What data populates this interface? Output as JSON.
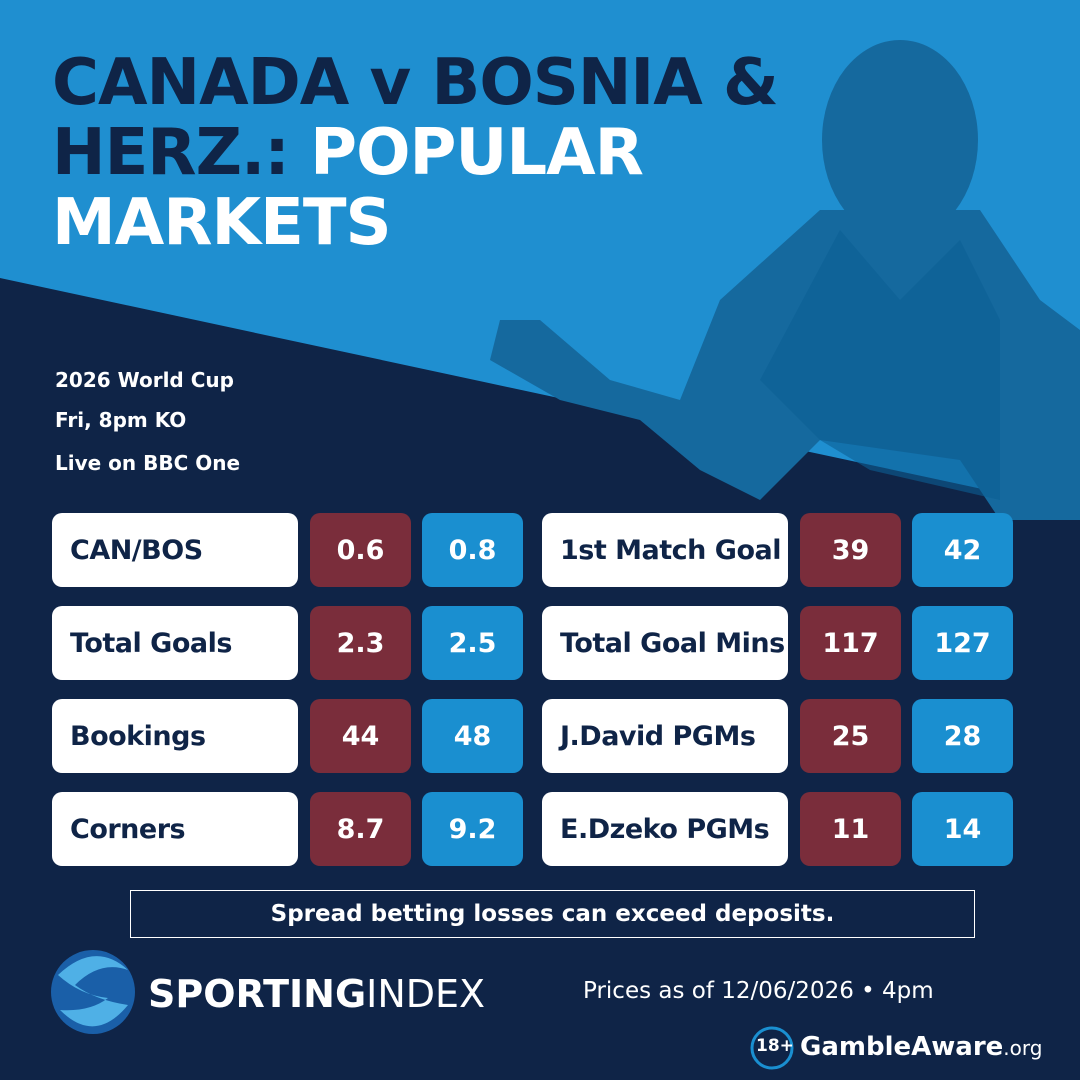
{
  "header": {
    "title_line1": "CANADA v BOSNIA &",
    "title_line2_dark": "HERZ.:",
    "title_line2_light": "POPULAR",
    "title_line3": "MARKETS"
  },
  "info": [
    "2026 World Cup",
    "Fri, 8pm KO",
    "Live on BBC One"
  ],
  "markets": {
    "left": [
      {
        "label": "CAN/BOS",
        "sell": "0.6",
        "buy": "0.8"
      },
      {
        "label": "Total Goals",
        "sell": "2.3",
        "buy": "2.5"
      },
      {
        "label": "Bookings",
        "sell": "44",
        "buy": "48"
      },
      {
        "label": "Corners",
        "sell": "8.7",
        "buy": "9.2"
      }
    ],
    "right": [
      {
        "label": "1st Match Goal",
        "sell": "39",
        "buy": "42"
      },
      {
        "label": "Total Goal Mins",
        "sell": "117",
        "buy": "127"
      },
      {
        "label": "J.David PGMs",
        "sell": "25",
        "buy": "28"
      },
      {
        "label": "E.Dzeko PGMs",
        "sell": "11",
        "buy": "14"
      }
    ]
  },
  "disclaimer": "Spread betting losses can exceed deposits.",
  "footer": {
    "brand_bold": "SPORTING",
    "brand_light": "INDEX",
    "prices_note": "Prices as of 12/06/2026 • 4pm",
    "age_badge": "18+",
    "gamble_aware": "GambleAware",
    "gamble_aware_suffix": ".org"
  }
}
